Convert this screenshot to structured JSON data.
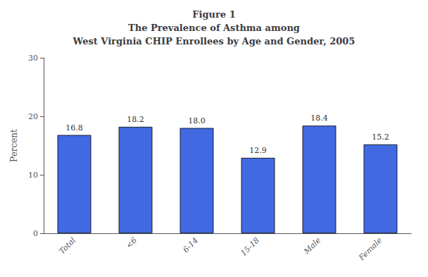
{
  "chart_data": {
    "type": "bar",
    "title": "Figure 1\nThe Prevalence of Asthma among\nWest Virginia CHIP Enrollees by Age and Gender, 2005",
    "categories": [
      "Total",
      "<6",
      "6-14",
      "15-18",
      "Male",
      "Female"
    ],
    "values": [
      16.8,
      18.2,
      18.0,
      12.9,
      18.4,
      15.2
    ],
    "value_labels": [
      "16.8",
      "18.2",
      "18.0",
      "12.9",
      "18.4",
      "15.2"
    ],
    "color": "#4169e1",
    "ylabel": "Percent",
    "ylim": [
      0,
      30
    ],
    "yticks": [
      0,
      10,
      20,
      30
    ],
    "grid": false,
    "data_labels": true
  }
}
